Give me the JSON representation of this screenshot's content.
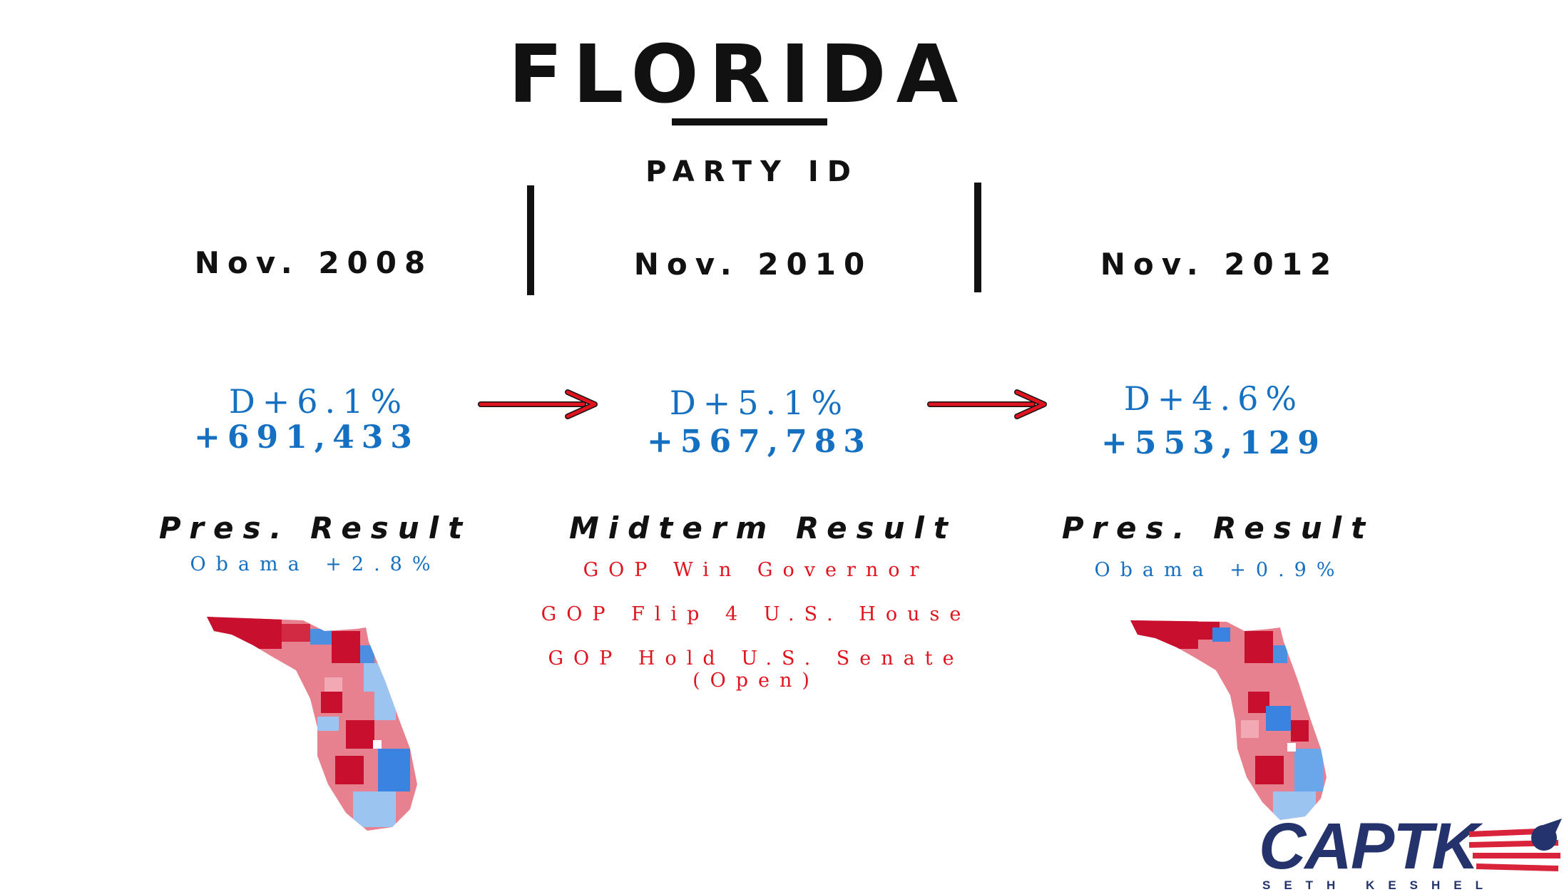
{
  "title": "FLORIDA",
  "subtitle": "PARTY ID",
  "columns": [
    {
      "date": "Nov. 2008",
      "party_pct": "D+6.1%",
      "party_num": "+691,433",
      "result_heading": "Pres. Result",
      "result_lines": [
        "Obama +2.8%"
      ]
    },
    {
      "date": "Nov. 2010",
      "party_pct": "D+5.1%",
      "party_num": "+567,783",
      "result_heading": "Midterm Result",
      "result_lines": [
        "GOP Win Governor",
        "GOP Flip 4 U.S. House",
        "GOP Hold U.S. Senate (Open)"
      ]
    },
    {
      "date": "Nov. 2012",
      "party_pct": "D+4.6%",
      "party_num": "+553,129",
      "result_heading": "Pres. Result",
      "result_lines": [
        "Obama +0.9%"
      ]
    }
  ],
  "maps": [
    {
      "state": "Florida",
      "year": "2008"
    },
    {
      "state": "Florida",
      "year": "2012"
    }
  ],
  "logo": {
    "brand": "CAPTK",
    "tagline": "SETH KESHEL"
  },
  "colors": {
    "text": "#111111",
    "democrat_blue": "#1570c2",
    "gop_red": "#e0141e",
    "logo_navy": "#24336b",
    "logo_red": "#d8233a"
  }
}
